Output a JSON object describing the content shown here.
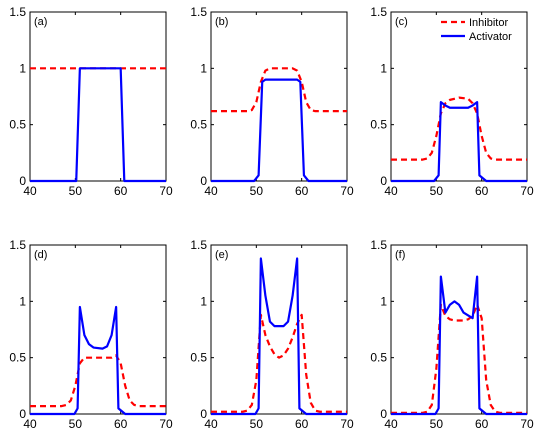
{
  "chart_data": {
    "type": "line",
    "xlim": [
      40,
      70
    ],
    "ylim": [
      0,
      1.5
    ],
    "x_ticks": [
      "40",
      "50",
      "60",
      "70"
    ],
    "y_ticks": [
      "0",
      "0.5",
      "1",
      "1.5"
    ],
    "grid": false,
    "colors": {
      "inhibitor": "#ff0000",
      "activator": "#0000ff"
    },
    "legend": {
      "placement": "top-right",
      "panel": 2,
      "entries": [
        {
          "name": "Inhibitor",
          "color": "#ff0000",
          "style": "dashed"
        },
        {
          "name": "Activator",
          "color": "#0000ff",
          "style": "solid"
        }
      ]
    },
    "panels": [
      {
        "label": "(a)",
        "series": [
          {
            "key": "inhibitor",
            "points": [
              [
                40,
                1
              ],
              [
                70,
                1
              ]
            ]
          },
          {
            "key": "activator",
            "points": [
              [
                40,
                0
              ],
              [
                50.2,
                0
              ],
              [
                51,
                1
              ],
              [
                60,
                1
              ],
              [
                60.8,
                0
              ],
              [
                70,
                0
              ]
            ]
          }
        ]
      },
      {
        "label": "(b)",
        "series": [
          {
            "key": "inhibitor",
            "points": [
              [
                40,
                0.62
              ],
              [
                48,
                0.62
              ],
              [
                49,
                0.63
              ],
              [
                50,
                0.7
              ],
              [
                51,
                0.88
              ],
              [
                52,
                0.98
              ],
              [
                53,
                1.0
              ],
              [
                58,
                1.0
              ],
              [
                59,
                0.98
              ],
              [
                60,
                0.88
              ],
              [
                61,
                0.7
              ],
              [
                62,
                0.63
              ],
              [
                63,
                0.62
              ],
              [
                70,
                0.62
              ]
            ]
          },
          {
            "key": "activator",
            "points": [
              [
                40,
                0
              ],
              [
                49.5,
                0
              ],
              [
                50.5,
                0.05
              ],
              [
                51.3,
                0.88
              ],
              [
                52,
                0.9
              ],
              [
                59,
                0.9
              ],
              [
                59.7,
                0.88
              ],
              [
                60.5,
                0.05
              ],
              [
                61.5,
                0
              ],
              [
                70,
                0
              ]
            ]
          }
        ]
      },
      {
        "label": "(c)",
        "series": [
          {
            "key": "inhibitor",
            "points": [
              [
                40,
                0.19
              ],
              [
                47,
                0.19
              ],
              [
                48,
                0.2
              ],
              [
                49,
                0.25
              ],
              [
                50,
                0.4
              ],
              [
                51,
                0.6
              ],
              [
                52,
                0.69
              ],
              [
                53,
                0.72
              ],
              [
                55,
                0.74
              ],
              [
                57,
                0.73
              ],
              [
                58,
                0.69
              ],
              [
                59,
                0.6
              ],
              [
                60,
                0.4
              ],
              [
                61,
                0.25
              ],
              [
                62,
                0.2
              ],
              [
                63,
                0.19
              ],
              [
                70,
                0.19
              ]
            ]
          },
          {
            "key": "activator",
            "points": [
              [
                40,
                0
              ],
              [
                49.5,
                0
              ],
              [
                50.5,
                0.05
              ],
              [
                51,
                0.7
              ],
              [
                52,
                0.67
              ],
              [
                53,
                0.65
              ],
              [
                57,
                0.65
              ],
              [
                58,
                0.67
              ],
              [
                59,
                0.7
              ],
              [
                59.5,
                0.05
              ],
              [
                61,
                0
              ],
              [
                70,
                0
              ]
            ]
          }
        ]
      },
      {
        "label": "(d)",
        "series": [
          {
            "key": "inhibitor",
            "points": [
              [
                40,
                0.07
              ],
              [
                47,
                0.07
              ],
              [
                48,
                0.08
              ],
              [
                49,
                0.12
              ],
              [
                50,
                0.25
              ],
              [
                51,
                0.45
              ],
              [
                52,
                0.5
              ],
              [
                55,
                0.5
              ],
              [
                58,
                0.5
              ],
              [
                59,
                0.52
              ],
              [
                60,
                0.45
              ],
              [
                61,
                0.25
              ],
              [
                62,
                0.12
              ],
              [
                63,
                0.08
              ],
              [
                64,
                0.07
              ],
              [
                70,
                0.07
              ]
            ]
          },
          {
            "key": "activator",
            "points": [
              [
                40,
                0
              ],
              [
                49.8,
                0
              ],
              [
                50.5,
                0.05
              ],
              [
                51,
                0.95
              ],
              [
                52,
                0.7
              ],
              [
                53,
                0.62
              ],
              [
                54,
                0.59
              ],
              [
                56,
                0.58
              ],
              [
                57,
                0.6
              ],
              [
                58,
                0.7
              ],
              [
                59,
                0.95
              ],
              [
                59.5,
                0.05
              ],
              [
                61,
                0
              ],
              [
                70,
                0
              ]
            ]
          }
        ]
      },
      {
        "label": "(e)",
        "series": [
          {
            "key": "inhibitor",
            "points": [
              [
                40,
                0.02
              ],
              [
                47,
                0.02
              ],
              [
                48,
                0.03
              ],
              [
                49,
                0.08
              ],
              [
                50,
                0.3
              ],
              [
                51,
                0.88
              ],
              [
                52,
                0.7
              ],
              [
                53,
                0.6
              ],
              [
                54,
                0.53
              ],
              [
                55,
                0.5
              ],
              [
                56,
                0.52
              ],
              [
                57,
                0.58
              ],
              [
                58,
                0.68
              ],
              [
                59,
                0.8
              ],
              [
                60,
                0.88
              ],
              [
                61,
                0.35
              ],
              [
                62,
                0.1
              ],
              [
                63,
                0.03
              ],
              [
                64,
                0.02
              ],
              [
                70,
                0.02
              ]
            ]
          },
          {
            "key": "activator",
            "points": [
              [
                40,
                0
              ],
              [
                49.8,
                0
              ],
              [
                50.5,
                0.05
              ],
              [
                51,
                1.38
              ],
              [
                52,
                1.05
              ],
              [
                53,
                0.82
              ],
              [
                54,
                0.78
              ],
              [
                56,
                0.78
              ],
              [
                57,
                0.82
              ],
              [
                58,
                1.05
              ],
              [
                59,
                1.38
              ],
              [
                59.5,
                0.05
              ],
              [
                61,
                0
              ],
              [
                70,
                0
              ]
            ]
          }
        ]
      },
      {
        "label": "(f)",
        "series": [
          {
            "key": "inhibitor",
            "points": [
              [
                40,
                0.01
              ],
              [
                47,
                0.01
              ],
              [
                48,
                0.02
              ],
              [
                49,
                0.08
              ],
              [
                50,
                0.4
              ],
              [
                51,
                0.97
              ],
              [
                52,
                0.87
              ],
              [
                53,
                0.84
              ],
              [
                54,
                0.83
              ],
              [
                56,
                0.83
              ],
              [
                57,
                0.84
              ],
              [
                58,
                0.87
              ],
              [
                59,
                0.97
              ],
              [
                60,
                0.85
              ],
              [
                61,
                0.3
              ],
              [
                62,
                0.08
              ],
              [
                63,
                0.02
              ],
              [
                64,
                0.01
              ],
              [
                70,
                0.01
              ]
            ]
          },
          {
            "key": "activator",
            "points": [
              [
                40,
                0
              ],
              [
                49.8,
                0
              ],
              [
                50.5,
                0.05
              ],
              [
                51,
                1.22
              ],
              [
                52,
                0.9
              ],
              [
                53,
                0.97
              ],
              [
                54,
                1.0
              ],
              [
                55,
                0.97
              ],
              [
                56,
                0.9
              ],
              [
                58,
                0.85
              ],
              [
                59,
                1.22
              ],
              [
                59.5,
                0.05
              ],
              [
                61,
                0
              ],
              [
                70,
                0
              ]
            ]
          }
        ]
      }
    ]
  }
}
